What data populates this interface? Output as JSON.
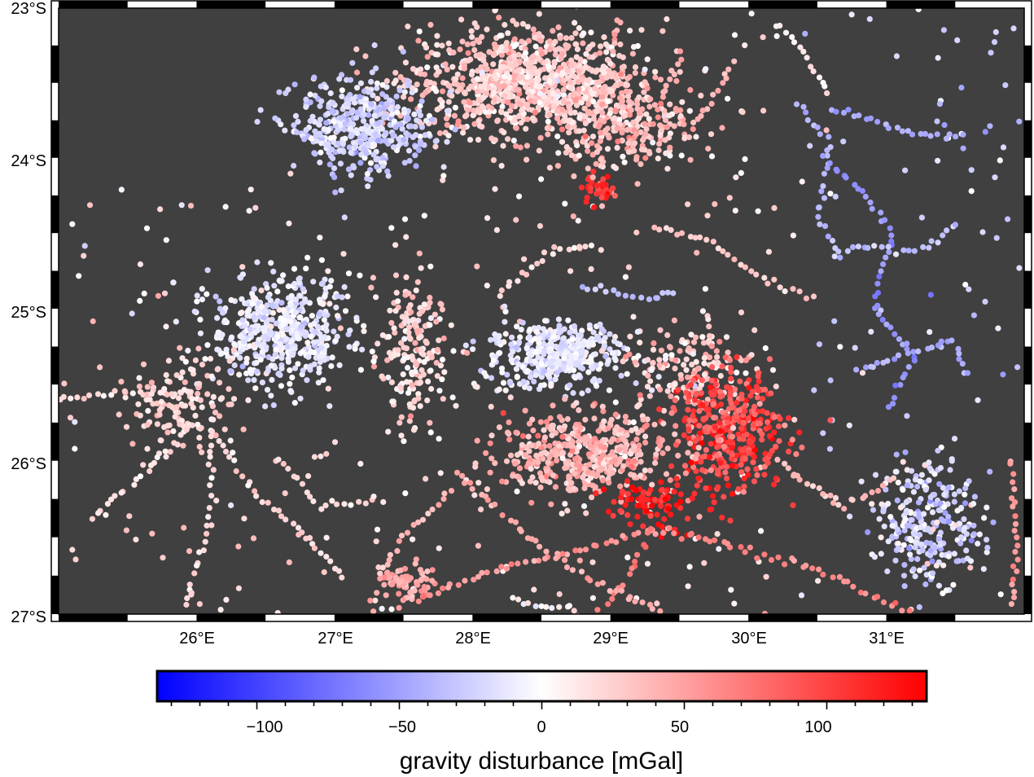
{
  "chart_data": {
    "type": "scatter",
    "subtype": "geographic-point-map",
    "projection": "mercator",
    "map": {
      "lon_range": [
        25.0,
        32.0
      ],
      "lat_range": [
        -27.0,
        -23.0
      ],
      "background_color": "#404040",
      "frame_style": "plain-with-checkerboard-ticks",
      "lon_ticks": [
        26,
        27,
        28,
        29,
        30,
        31
      ],
      "lat_ticks": [
        -23,
        -24,
        -25,
        -26,
        -27
      ],
      "lon_tick_labels": [
        "26°E",
        "27°E",
        "28°E",
        "29°E",
        "30°E",
        "31°E"
      ],
      "lat_tick_labels": [
        "23°S",
        "24°S",
        "25°S",
        "26°S",
        "27°S"
      ]
    },
    "colorbar": {
      "label": "gravity disturbance [mGal]",
      "range": [
        -135,
        135
      ],
      "cmap": "polar",
      "colors": {
        "low": "#0000ff",
        "mid": "#ffffff",
        "high": "#ff0000"
      },
      "major_ticks": [
        -100,
        -50,
        0,
        50,
        100
      ],
      "major_tick_labels": [
        "−100",
        "−50",
        "0",
        "50",
        "100"
      ],
      "minor_tick_step": 10,
      "placement": "bottom-horizontal"
    },
    "marker_size_note": "small circles",
    "clusters": [
      {
        "lon": 28.4,
        "lat": -23.5,
        "sx": 0.75,
        "sy": 0.32,
        "n": 950,
        "value": 25,
        "spread": 14
      },
      {
        "lon": 27.2,
        "lat": -23.8,
        "sx": 0.45,
        "sy": 0.28,
        "n": 420,
        "value": -22,
        "spread": 12
      },
      {
        "lon": 28.9,
        "lat": -24.2,
        "sx": 0.1,
        "sy": 0.08,
        "n": 40,
        "value": 110,
        "spread": 12
      },
      {
        "lon": 29.1,
        "lat": -23.8,
        "sx": 0.5,
        "sy": 0.25,
        "n": 220,
        "value": 30,
        "spread": 15
      },
      {
        "lon": 26.6,
        "lat": -25.15,
        "sx": 0.45,
        "sy": 0.32,
        "n": 500,
        "value": -12,
        "spread": 10
      },
      {
        "lon": 25.9,
        "lat": -25.6,
        "sx": 0.35,
        "sy": 0.25,
        "n": 120,
        "value": 22,
        "spread": 10
      },
      {
        "lon": 28.6,
        "lat": -25.3,
        "sx": 0.45,
        "sy": 0.2,
        "n": 420,
        "value": -12,
        "spread": 10
      },
      {
        "lon": 29.6,
        "lat": -25.4,
        "sx": 0.4,
        "sy": 0.25,
        "n": 150,
        "value": 25,
        "spread": 18
      },
      {
        "lon": 29.85,
        "lat": -25.8,
        "sx": 0.38,
        "sy": 0.35,
        "n": 380,
        "value": 95,
        "spread": 18
      },
      {
        "lon": 28.8,
        "lat": -25.95,
        "sx": 0.6,
        "sy": 0.25,
        "n": 480,
        "value": 38,
        "spread": 14
      },
      {
        "lon": 29.3,
        "lat": -26.3,
        "sx": 0.3,
        "sy": 0.15,
        "n": 90,
        "value": 115,
        "spread": 12
      },
      {
        "lon": 31.3,
        "lat": -26.4,
        "sx": 0.35,
        "sy": 0.35,
        "n": 260,
        "value": -18,
        "spread": 16
      },
      {
        "lon": 27.5,
        "lat": -26.8,
        "sx": 0.2,
        "sy": 0.12,
        "n": 70,
        "value": 48,
        "spread": 10
      },
      {
        "lon": 27.55,
        "lat": -25.3,
        "sx": 0.2,
        "sy": 0.5,
        "n": 180,
        "value": 20,
        "spread": 14
      }
    ],
    "lines": [
      {
        "points": [
          [
            30.35,
            -23.65
          ],
          [
            30.6,
            -23.9
          ],
          [
            30.5,
            -24.4
          ],
          [
            30.7,
            -24.7
          ]
        ],
        "value": -38
      },
      {
        "points": [
          [
            30.6,
            -23.65
          ],
          [
            30.9,
            -23.75
          ],
          [
            31.2,
            -23.85
          ],
          [
            31.6,
            -23.85
          ]
        ],
        "value": -45
      },
      {
        "points": [
          [
            30.55,
            -24.0
          ],
          [
            30.8,
            -24.2
          ],
          [
            31.05,
            -24.5
          ],
          [
            30.9,
            -25.0
          ],
          [
            31.2,
            -25.3
          ],
          [
            31.0,
            -25.7
          ]
        ],
        "value": -55
      },
      {
        "points": [
          [
            30.7,
            -24.6
          ],
          [
            31.3,
            -24.6
          ],
          [
            31.55,
            -24.4
          ]
        ],
        "value": -30
      },
      {
        "points": [
          [
            30.8,
            -25.4
          ],
          [
            31.5,
            -25.2
          ],
          [
            31.6,
            -25.5
          ]
        ],
        "value": -45
      },
      {
        "points": [
          [
            28.8,
            -24.85
          ],
          [
            29.3,
            -24.95
          ],
          [
            29.5,
            -24.85
          ]
        ],
        "value": -32
      },
      {
        "points": [
          [
            28.2,
            -24.9
          ],
          [
            28.4,
            -24.75
          ],
          [
            28.6,
            -24.6
          ],
          [
            28.95,
            -24.6
          ]
        ],
        "value": 18
      },
      {
        "points": [
          [
            29.3,
            -24.45
          ],
          [
            29.7,
            -24.55
          ],
          [
            30.1,
            -24.8
          ],
          [
            30.5,
            -24.95
          ]
        ],
        "value": 28
      },
      {
        "points": [
          [
            29.3,
            -26.45
          ],
          [
            29.9,
            -26.55
          ],
          [
            30.6,
            -26.75
          ],
          [
            31.2,
            -27.0
          ]
        ],
        "value": 62
      },
      {
        "points": [
          [
            29.3,
            -26.45
          ],
          [
            28.7,
            -26.6
          ],
          [
            28.2,
            -26.7
          ],
          [
            27.6,
            -26.9
          ]
        ],
        "value": 55
      },
      {
        "points": [
          [
            29.3,
            -26.45
          ],
          [
            29.1,
            -26.8
          ],
          [
            28.9,
            -27.0
          ]
        ],
        "value": 70
      },
      {
        "points": [
          [
            27.9,
            -26.1
          ],
          [
            28.4,
            -26.5
          ],
          [
            28.9,
            -26.8
          ],
          [
            29.4,
            -27.0
          ]
        ],
        "value": 45
      },
      {
        "points": [
          [
            27.85,
            -26.2
          ],
          [
            27.5,
            -26.5
          ],
          [
            27.3,
            -26.8
          ]
        ],
        "value": 40
      },
      {
        "points": [
          [
            26.1,
            -25.8
          ],
          [
            26.4,
            -26.2
          ],
          [
            26.8,
            -26.5
          ],
          [
            27.1,
            -26.8
          ]
        ],
        "value": 20
      },
      {
        "points": [
          [
            26.0,
            -25.75
          ],
          [
            25.6,
            -26.1
          ],
          [
            25.2,
            -26.4
          ]
        ],
        "value": 18
      },
      {
        "points": [
          [
            26.1,
            -25.8
          ],
          [
            26.1,
            -26.4
          ],
          [
            25.9,
            -27.0
          ]
        ],
        "value": 15
      },
      {
        "points": [
          [
            26.6,
            -26.0
          ],
          [
            26.9,
            -26.3
          ],
          [
            27.4,
            -26.25
          ]
        ],
        "value": 16
      },
      {
        "points": [
          [
            25.0,
            -25.6
          ],
          [
            25.5,
            -25.55
          ],
          [
            26.0,
            -25.55
          ]
        ],
        "value": 22
      },
      {
        "points": [
          [
            31.9,
            -26.0
          ],
          [
            31.95,
            -26.5
          ],
          [
            31.9,
            -27.0
          ]
        ],
        "value": 55
      },
      {
        "points": [
          [
            30.2,
            -26.0
          ],
          [
            30.7,
            -26.3
          ],
          [
            31.1,
            -26.1
          ]
        ],
        "value": 35
      },
      {
        "points": [
          [
            29.05,
            -23.1
          ],
          [
            28.95,
            -23.6
          ],
          [
            28.9,
            -24.1
          ]
        ],
        "value": 40
      },
      {
        "points": [
          [
            29.5,
            -23.3
          ],
          [
            29.3,
            -23.8
          ]
        ],
        "value": 50
      },
      {
        "points": [
          [
            29.9,
            -23.35
          ],
          [
            29.55,
            -23.9
          ]
        ],
        "value": 40
      },
      {
        "points": [
          [
            30.2,
            -23.1
          ],
          [
            30.4,
            -23.3
          ],
          [
            30.6,
            -23.6
          ]
        ],
        "value": 10
      },
      {
        "points": [
          [
            28.3,
            -26.9
          ],
          [
            28.5,
            -26.95
          ],
          [
            28.8,
            -26.98
          ]
        ],
        "value": 0
      }
    ]
  }
}
